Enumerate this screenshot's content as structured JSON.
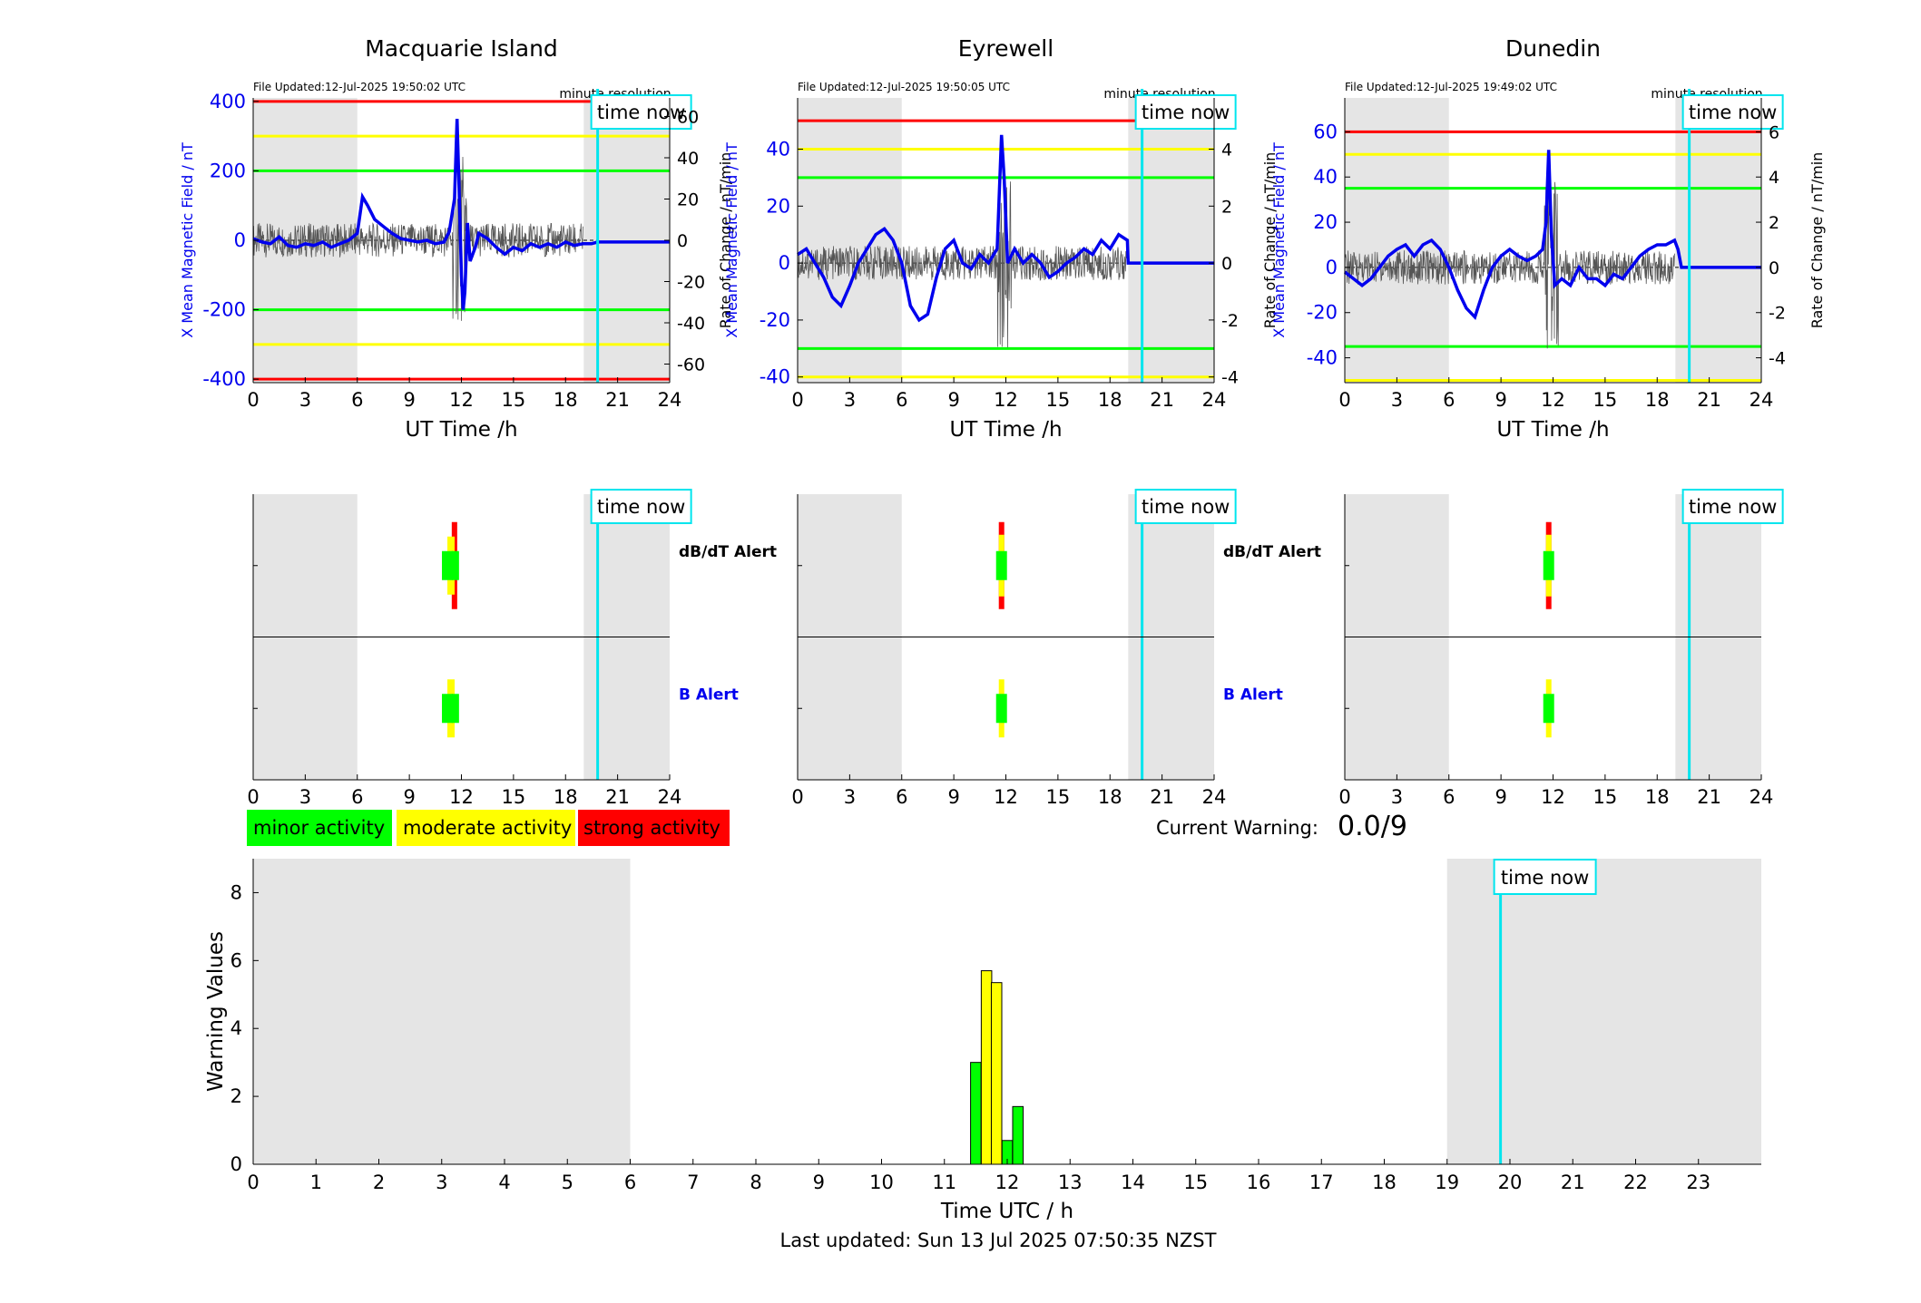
{
  "time_now_label": "time now",
  "minute_resolution_label": "minute resolution",
  "alert_labels": {
    "dbdt": "dB/dT Alert",
    "b": "B Alert"
  },
  "legend": [
    {
      "label": "minor activity",
      "color": "#00ff00"
    },
    {
      "label": "moderate activity",
      "color": "#ffff00"
    },
    {
      "label": "strong activity",
      "color": "#ff0000"
    }
  ],
  "current_warning": {
    "label": "Current Warning:",
    "value": "0.0/9"
  },
  "footer": "Last updated: Sun 13 Jul 2025 07:50:35 NZST",
  "colors": {
    "x_field": "#0000ee",
    "rate": "#555555",
    "time_now": "#00e5ee",
    "night": "#e5e5e5"
  },
  "chart_data": [
    {
      "type": "line",
      "title": "Macquarie Island",
      "file_updated": "File Updated:12-Jul-2025 19:50:02 UTC",
      "xlabel": "UT Time /h",
      "ylabel": "X Mean Magnetic Field / nT",
      "y2label": "Rate of Change / nT/min",
      "xlim": [
        0,
        24
      ],
      "xticks": [
        0,
        3,
        6,
        9,
        12,
        15,
        18,
        21,
        24
      ],
      "ylim": [
        -410,
        410
      ],
      "yticks": [
        -400,
        -200,
        0,
        200,
        400
      ],
      "y2lim": [
        -69,
        69
      ],
      "y2ticks": [
        -60,
        -40,
        -20,
        0,
        20,
        40,
        60
      ],
      "time_now": 19.85,
      "night": [
        [
          0,
          6
        ],
        [
          19.05,
          24
        ]
      ],
      "thresholds": [
        {
          "value": 400,
          "color": "#ff0000"
        },
        {
          "value": -400,
          "color": "#ff0000"
        },
        {
          "value": 300,
          "color": "#ffff00"
        },
        {
          "value": -300,
          "color": "#ffff00"
        },
        {
          "value": 200,
          "color": "#00ff00"
        },
        {
          "value": -200,
          "color": "#00ff00"
        }
      ],
      "series": [
        {
          "values": [
            [
              0,
              5
            ],
            [
              0.5,
              -5
            ],
            [
              1,
              -10
            ],
            [
              1.5,
              10
            ],
            [
              2,
              -15
            ],
            [
              2.5,
              -20
            ],
            [
              3,
              -10
            ],
            [
              3.5,
              -15
            ],
            [
              4,
              -5
            ],
            [
              4.5,
              -20
            ],
            [
              5,
              -10
            ],
            [
              5.5,
              0
            ],
            [
              6,
              20
            ],
            [
              6.3,
              125
            ],
            [
              6.6,
              100
            ],
            [
              7,
              60
            ],
            [
              7.5,
              40
            ],
            [
              8,
              20
            ],
            [
              8.5,
              5
            ],
            [
              9,
              0
            ],
            [
              9.5,
              -5
            ],
            [
              10,
              0
            ],
            [
              10.5,
              -10
            ],
            [
              11,
              -5
            ],
            [
              11.3,
              25
            ],
            [
              11.6,
              120
            ],
            [
              11.75,
              350
            ],
            [
              11.85,
              180
            ],
            [
              12,
              -100
            ],
            [
              12.1,
              -200
            ],
            [
              12.2,
              -150
            ],
            [
              12.35,
              50
            ],
            [
              12.5,
              -60
            ],
            [
              12.8,
              -20
            ],
            [
              13,
              20
            ],
            [
              13.5,
              5
            ],
            [
              14,
              -20
            ],
            [
              14.5,
              -40
            ],
            [
              15,
              -20
            ],
            [
              15.5,
              -30
            ],
            [
              16,
              -10
            ],
            [
              16.5,
              -20
            ],
            [
              17,
              -10
            ],
            [
              17.5,
              -20
            ],
            [
              18,
              -5
            ],
            [
              18.5,
              -15
            ],
            [
              19,
              -10
            ],
            [
              19.5,
              -10
            ],
            [
              19.85,
              -5
            ],
            [
              24,
              -5
            ]
          ]
        }
      ]
    },
    {
      "type": "line",
      "title": "Eyrewell",
      "file_updated": "File Updated:12-Jul-2025 19:50:05 UTC",
      "xlabel": "UT Time /h",
      "ylabel": "X Mean Magnetic Field / nT",
      "y2label": "Rate of Change / nT/min",
      "xlim": [
        0,
        24
      ],
      "xticks": [
        0,
        3,
        6,
        9,
        12,
        15,
        18,
        21,
        24
      ],
      "ylim": [
        -42,
        58
      ],
      "yticks": [
        -40,
        -20,
        0,
        20,
        40
      ],
      "y2lim": [
        -4.2,
        5.8
      ],
      "y2ticks": [
        -4,
        -2,
        0,
        2,
        4
      ],
      "time_now": 19.85,
      "night": [
        [
          0,
          6
        ],
        [
          19.05,
          24
        ]
      ],
      "thresholds": [
        {
          "value": 50,
          "color": "#ff0000"
        },
        {
          "value": 40,
          "color": "#ffff00"
        },
        {
          "value": -40,
          "color": "#ffff00"
        },
        {
          "value": 30,
          "color": "#00ff00"
        },
        {
          "value": -30,
          "color": "#00ff00"
        }
      ],
      "series": [
        {
          "values": [
            [
              0,
              3
            ],
            [
              0.5,
              5
            ],
            [
              1,
              0
            ],
            [
              1.5,
              -5
            ],
            [
              2,
              -12
            ],
            [
              2.5,
              -15
            ],
            [
              3,
              -8
            ],
            [
              3.5,
              0
            ],
            [
              4,
              5
            ],
            [
              4.5,
              10
            ],
            [
              5,
              12
            ],
            [
              5.5,
              8
            ],
            [
              6,
              0
            ],
            [
              6.5,
              -15
            ],
            [
              7,
              -20
            ],
            [
              7.5,
              -18
            ],
            [
              8,
              -5
            ],
            [
              8.5,
              5
            ],
            [
              9,
              8
            ],
            [
              9.5,
              0
            ],
            [
              10,
              -2
            ],
            [
              10.5,
              3
            ],
            [
              11,
              0
            ],
            [
              11.5,
              5
            ],
            [
              11.75,
              45
            ],
            [
              11.9,
              30
            ],
            [
              12.1,
              0
            ],
            [
              12.5,
              5
            ],
            [
              13,
              0
            ],
            [
              13.5,
              3
            ],
            [
              14,
              0
            ],
            [
              14.5,
              -5
            ],
            [
              15,
              -3
            ],
            [
              15.5,
              0
            ],
            [
              16,
              2
            ],
            [
              16.5,
              5
            ],
            [
              17,
              3
            ],
            [
              17.5,
              8
            ],
            [
              18,
              5
            ],
            [
              18.5,
              10
            ],
            [
              19,
              8
            ],
            [
              19.05,
              0
            ],
            [
              24,
              0
            ]
          ]
        }
      ]
    },
    {
      "type": "line",
      "title": "Dunedin",
      "file_updated": "File Updated:12-Jul-2025 19:49:02 UTC",
      "xlabel": "UT Time /h",
      "ylabel": "X Mean Magnetic Field / nT",
      "y2label": "Rate of Change / nT/min",
      "xlim": [
        0,
        24
      ],
      "xticks": [
        0,
        3,
        6,
        9,
        12,
        15,
        18,
        21,
        24
      ],
      "ylim": [
        -51,
        75
      ],
      "yticks": [
        -40,
        -20,
        0,
        20,
        40,
        60
      ],
      "y2lim": [
        -5.1,
        7.5
      ],
      "y2ticks": [
        -4,
        -2,
        0,
        2,
        4,
        6
      ],
      "time_now": 19.85,
      "night": [
        [
          0,
          6
        ],
        [
          19.05,
          24
        ]
      ],
      "thresholds": [
        {
          "value": 60,
          "color": "#ff0000"
        },
        {
          "value": 50,
          "color": "#ffff00"
        },
        {
          "value": -50,
          "color": "#ffff00"
        },
        {
          "value": 35,
          "color": "#00ff00"
        },
        {
          "value": -35,
          "color": "#00ff00"
        }
      ],
      "series": [
        {
          "values": [
            [
              0,
              -2
            ],
            [
              0.5,
              -5
            ],
            [
              1,
              -8
            ],
            [
              1.5,
              -5
            ],
            [
              2,
              0
            ],
            [
              2.5,
              5
            ],
            [
              3,
              8
            ],
            [
              3.5,
              10
            ],
            [
              4,
              5
            ],
            [
              4.5,
              10
            ],
            [
              5,
              12
            ],
            [
              5.5,
              8
            ],
            [
              6,
              0
            ],
            [
              6.5,
              -10
            ],
            [
              7,
              -18
            ],
            [
              7.5,
              -22
            ],
            [
              8,
              -10
            ],
            [
              8.5,
              0
            ],
            [
              9,
              5
            ],
            [
              9.5,
              8
            ],
            [
              10,
              5
            ],
            [
              10.5,
              3
            ],
            [
              11,
              5
            ],
            [
              11.4,
              8
            ],
            [
              11.6,
              20
            ],
            [
              11.75,
              52
            ],
            [
              11.9,
              15
            ],
            [
              12.1,
              -8
            ],
            [
              12.5,
              -5
            ],
            [
              13,
              -8
            ],
            [
              13.5,
              0
            ],
            [
              14,
              -5
            ],
            [
              14.5,
              -5
            ],
            [
              15,
              -8
            ],
            [
              15.5,
              -3
            ],
            [
              16,
              -5
            ],
            [
              16.5,
              0
            ],
            [
              17,
              5
            ],
            [
              17.5,
              8
            ],
            [
              18,
              10
            ],
            [
              18.5,
              10
            ],
            [
              19,
              12
            ],
            [
              19.2,
              8
            ],
            [
              19.4,
              0
            ],
            [
              24,
              0
            ]
          ]
        }
      ]
    },
    {
      "type": "bar",
      "xlabel": "Time UTC / h",
      "ylabel": "Warning Values",
      "xlim": [
        0,
        24
      ],
      "xticks": [
        0,
        1,
        2,
        3,
        4,
        5,
        6,
        7,
        8,
        9,
        10,
        11,
        12,
        13,
        14,
        15,
        16,
        17,
        18,
        19,
        20,
        21,
        22,
        23
      ],
      "ylim": [
        0,
        9
      ],
      "yticks": [
        0,
        2,
        4,
        6,
        8
      ],
      "time_now": 19.85,
      "night": [
        [
          0,
          6
        ],
        [
          19,
          24
        ]
      ],
      "bars": [
        {
          "x": 11.5,
          "value": 3.0,
          "color": "#00ff00"
        },
        {
          "x": 11.67,
          "value": 5.7,
          "color": "#ffff00"
        },
        {
          "x": 11.83,
          "value": 5.35,
          "color": "#ffff00"
        },
        {
          "x": 12.0,
          "value": 0.7,
          "color": "#00ff00"
        },
        {
          "x": 12.17,
          "value": 1.7,
          "color": "#00ff00"
        }
      ]
    }
  ]
}
